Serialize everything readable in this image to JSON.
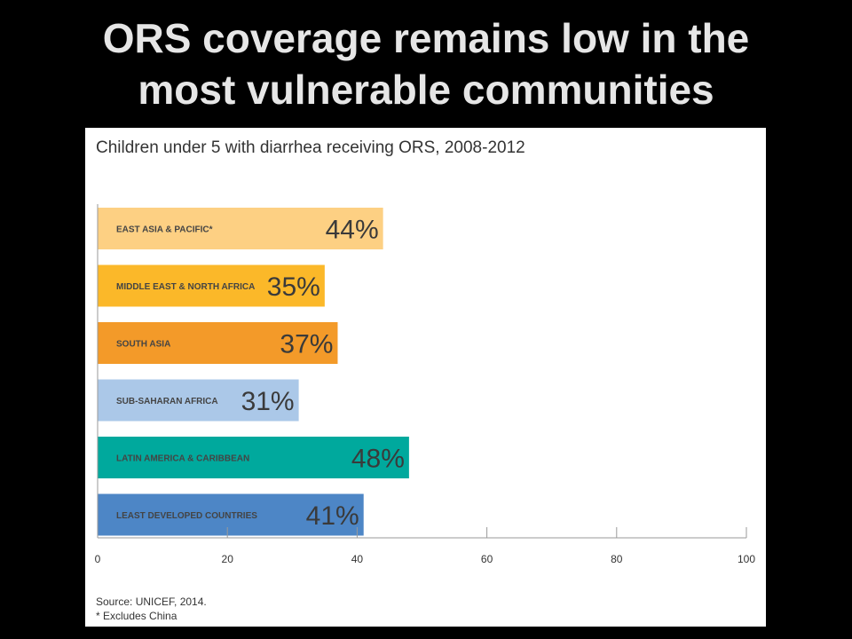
{
  "slide": {
    "title_line1": "ORS coverage remains low in the",
    "title_line2": "most vulnerable communities"
  },
  "chart_data": {
    "type": "bar",
    "orientation": "horizontal",
    "title": "Children under 5 with diarrhea receiving ORS, 2008-2012",
    "categories": [
      "EAST ASIA & PACIFIC*",
      "MIDDLE EAST & NORTH AFRICA",
      "SOUTH ASIA",
      "SUB-SAHARAN AFRICA",
      "LATIN AMERICA & CARIBBEAN",
      "LEAST DEVELOPED COUNTRIES"
    ],
    "values": [
      44,
      35,
      37,
      31,
      48,
      41
    ],
    "value_labels": [
      "44%",
      "35%",
      "37%",
      "31%",
      "48%",
      "41%"
    ],
    "colors": [
      "#fdd083",
      "#fbb829",
      "#f39a29",
      "#abc8e8",
      "#00a99d",
      "#4d86c6"
    ],
    "xlim": [
      0,
      100
    ],
    "xticks": [
      0,
      20,
      40,
      60,
      80,
      100
    ],
    "xtick_labels": [
      "0",
      "20",
      "40",
      "60",
      "80",
      "100"
    ],
    "grid": false,
    "source": "Source: UNICEF, 2014.",
    "footnote": "* Excludes China"
  }
}
